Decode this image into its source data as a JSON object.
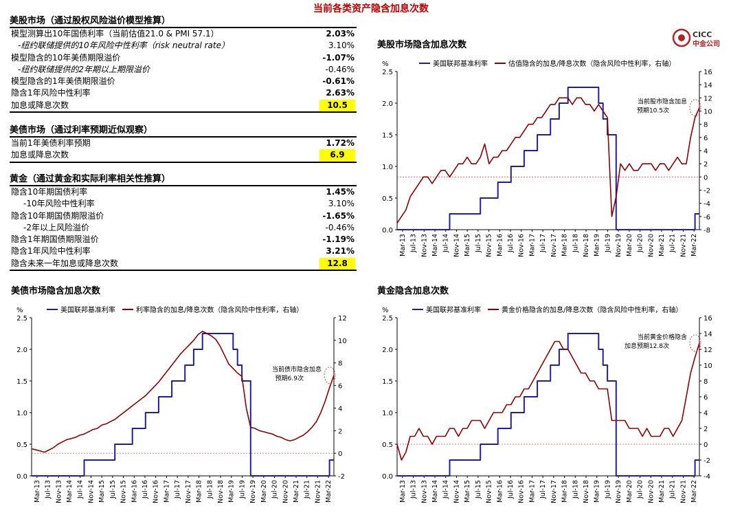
{
  "page_title": "当前各类资产隐含加息次数",
  "logo": {
    "line1": "CICC",
    "line2": "中金公司"
  },
  "tables": [
    {
      "title": "美股市场（通过股权风险溢价模型推算）",
      "rows": [
        {
          "label": "模型测算出10年国债利率（当前估值21.0 & PMI 57.1）",
          "value": "2.03%",
          "bold": true,
          "indent": 0
        },
        {
          "label": "-纽约联储提供的10年风险中性利率（risk neutral rate）",
          "value": "3.10%",
          "bold": false,
          "indent": 1
        },
        {
          "label": "模型隐含的10年美债期限溢价",
          "value": "-1.07%",
          "bold": true,
          "indent": 0
        },
        {
          "label": "-纽约联储提供的2年期以上期限溢价",
          "value": "-0.46%",
          "bold": false,
          "indent": 1
        },
        {
          "label": "模型隐含的1年美债期限溢价",
          "value": "-0.61%",
          "bold": true,
          "indent": 0
        },
        {
          "label": "隐含1年风险中性利率",
          "value": "2.63%",
          "bold": true,
          "indent": 0
        },
        {
          "label": "加息或降息次数",
          "value": "10.5",
          "bold": true,
          "indent": 0,
          "highlight": true
        }
      ]
    },
    {
      "title": "美债市场（通过利率预期近似观察）",
      "rows": [
        {
          "label": "当前1年美债利率预期",
          "value": "1.72%",
          "bold": true,
          "indent": 0
        },
        {
          "label": "加息或降息次数",
          "value": "6.9",
          "bold": true,
          "indent": 0,
          "highlight": true
        }
      ]
    },
    {
      "title": "黄金（通过黄金和实际利率相关性推算）",
      "rows": [
        {
          "label": "隐含10年期国债利率",
          "value": "1.45%",
          "bold": true,
          "indent": 0
        },
        {
          "label": "-10年风险中性利率",
          "value": "3.10%",
          "bold": false,
          "indent": 2
        },
        {
          "label": "隐含10年期国债期限溢价",
          "value": "-1.65%",
          "bold": true,
          "indent": 0
        },
        {
          "label": "-2年以上风险溢价",
          "value": "-0.46%",
          "bold": false,
          "indent": 2
        },
        {
          "label": "隐含1年期国债期限溢价",
          "value": "-1.19%",
          "bold": true,
          "indent": 0
        },
        {
          "label": "隐含1年风险中性利率",
          "value": "3.21%",
          "bold": true,
          "indent": 0
        },
        {
          "label": "隐含未来一年加息或降息次数",
          "value": "12.8",
          "bold": true,
          "indent": 0,
          "highlight": true
        }
      ]
    }
  ],
  "colors": {
    "fed": "#1f1f9e",
    "implied": "#8b0000",
    "highlight": "#ffff00",
    "title": "#c00000"
  },
  "x_ticks": [
    "Mar-13",
    "Jul-13",
    "Nov-13",
    "Mar-14",
    "Jul-14",
    "Nov-14",
    "Mar-15",
    "Jul-15",
    "Nov-15",
    "Mar-16",
    "Jul-16",
    "Nov-16",
    "Mar-17",
    "Jul-17",
    "Nov-17",
    "Mar-18",
    "Jul-18",
    "Nov-18",
    "Mar-19",
    "Jul-19",
    "Nov-19",
    "Mar-20",
    "Jul-20",
    "Nov-20",
    "Mar-21",
    "Jul-21",
    "Nov-21",
    "Mar-22"
  ],
  "chart_data": [
    {
      "type": "line",
      "title": "美股市场隐含加息次数",
      "y_unit": "%",
      "ylim_left": [
        0,
        2.5
      ],
      "ylim_right": [
        -8,
        16
      ],
      "left_ticks": [
        "0.0",
        "0.5",
        "1.0",
        "1.5",
        "2.0",
        "2.5"
      ],
      "right_ticks": [
        "-8",
        "-6",
        "-4",
        "-2",
        "0",
        "2",
        "4",
        "6",
        "8",
        "10",
        "12",
        "14",
        "16"
      ],
      "series": [
        {
          "name": "美国联邦基准利率",
          "axis": "left",
          "step": true,
          "values": [
            0,
            0,
            0,
            0,
            0,
            0,
            0,
            0,
            0,
            0,
            0,
            0,
            0.25,
            0.25,
            0.25,
            0.25,
            0.25,
            0.25,
            0.25,
            0.5,
            0.5,
            0.5,
            0.5,
            0.75,
            0.75,
            0.75,
            1.0,
            1.0,
            1.0,
            1.25,
            1.25,
            1.25,
            1.5,
            1.5,
            1.5,
            1.75,
            1.75,
            2.0,
            2.0,
            2.25,
            2.25,
            2.25,
            2.25,
            2.25,
            2.25,
            2.25,
            2.0,
            1.75,
            1.5,
            1.5,
            0,
            0,
            0,
            0,
            0,
            0,
            0,
            0,
            0,
            0,
            0,
            0,
            0,
            0,
            0,
            0,
            0,
            0,
            0.25,
            0.25
          ]
        },
        {
          "name": "估值隐含的加息/降息次数（隐含风险中性利率，右轴）",
          "axis": "right",
          "step": false,
          "values": [
            -7,
            -6,
            -5,
            -3,
            -2,
            -1,
            0,
            0,
            -1,
            0,
            1,
            1,
            0,
            1,
            2,
            2,
            3,
            2,
            2,
            3,
            5,
            2,
            3,
            3,
            4,
            4,
            5,
            6,
            6,
            7,
            8,
            8,
            9,
            9,
            10,
            11,
            11,
            12,
            12,
            12,
            11,
            12,
            12,
            11,
            11,
            10,
            11,
            10,
            9,
            -6,
            -3,
            2,
            1,
            2,
            1,
            1,
            2,
            2,
            2,
            1,
            2,
            2,
            1,
            2,
            3,
            2,
            2,
            6,
            9,
            10.5
          ]
        }
      ],
      "annotation": {
        "line1": "当前股市隐含加息",
        "line2": "预期10.5次"
      }
    },
    {
      "type": "line",
      "title": "美债市场隐含加息次数",
      "y_unit": "%",
      "ylim_left": [
        0,
        2.5
      ],
      "ylim_right": [
        -2,
        12
      ],
      "left_ticks": [
        "0.0",
        "0.5",
        "1.0",
        "1.5",
        "2.0",
        "2.5"
      ],
      "right_ticks": [
        "-2",
        "0",
        "2",
        "4",
        "6",
        "8",
        "10",
        "12"
      ],
      "series": [
        {
          "name": "美国联邦基准利率",
          "axis": "left",
          "step": true,
          "values": [
            0,
            0,
            0,
            0,
            0,
            0,
            0,
            0,
            0,
            0,
            0,
            0,
            0.25,
            0.25,
            0.25,
            0.25,
            0.25,
            0.25,
            0.25,
            0.5,
            0.5,
            0.5,
            0.5,
            0.75,
            0.75,
            0.75,
            1.0,
            1.0,
            1.0,
            1.25,
            1.25,
            1.25,
            1.5,
            1.5,
            1.5,
            1.75,
            1.75,
            2.0,
            2.0,
            2.25,
            2.25,
            2.25,
            2.25,
            2.25,
            2.25,
            2.25,
            2.0,
            1.75,
            1.5,
            1.5,
            0,
            0,
            0,
            0,
            0,
            0,
            0,
            0,
            0,
            0,
            0,
            0,
            0,
            0,
            0,
            0,
            0,
            0,
            0.25,
            0.25
          ]
        },
        {
          "name": "利率隐含的加息/降息次数（隐含风险中性利率，右轴）",
          "axis": "right",
          "step": false,
          "values": [
            0.4,
            0.3,
            0.2,
            0.1,
            0.3,
            0.5,
            0.8,
            1.0,
            1.2,
            1.3,
            1.4,
            1.6,
            1.7,
            1.9,
            2.1,
            2.2,
            2.5,
            2.6,
            2.8,
            3.0,
            3.3,
            3.6,
            3.9,
            4.2,
            4.5,
            4.8,
            5.1,
            5.5,
            5.9,
            6.3,
            6.8,
            7.3,
            7.8,
            8.3,
            8.8,
            9.2,
            9.6,
            10.0,
            10.5,
            10.8,
            10.6,
            10.4,
            10.1,
            9.5,
            8.7,
            7.9,
            7.5,
            7.1,
            6.8,
            4.0,
            2.3,
            2.2,
            2.0,
            1.9,
            1.8,
            1.7,
            1.5,
            1.4,
            1.2,
            1.1,
            1.2,
            1.4,
            1.6,
            1.9,
            2.3,
            2.8,
            3.6,
            4.6,
            5.8,
            6.9
          ]
        }
      ],
      "annotation": {
        "line1": "当前债市隐含加息",
        "line2": "预期6.9次"
      }
    },
    {
      "type": "line",
      "title": "黄金隐含加息次数",
      "y_unit": "%",
      "ylim_left": [
        0,
        2.5
      ],
      "ylim_right": [
        -4,
        16
      ],
      "left_ticks": [
        "0.0",
        "0.5",
        "1.0",
        "1.5",
        "2.0",
        "2.5"
      ],
      "right_ticks": [
        "-4",
        "-2",
        "0",
        "2",
        "4",
        "6",
        "8",
        "10",
        "12",
        "14",
        "16"
      ],
      "series": [
        {
          "name": "美国联邦基准利率",
          "axis": "left",
          "step": true,
          "values": [
            0,
            0,
            0,
            0,
            0,
            0,
            0,
            0,
            0,
            0,
            0,
            0,
            0.25,
            0.25,
            0.25,
            0.25,
            0.25,
            0.25,
            0.25,
            0.5,
            0.5,
            0.5,
            0.5,
            0.75,
            0.75,
            0.75,
            1.0,
            1.0,
            1.0,
            1.25,
            1.25,
            1.25,
            1.5,
            1.5,
            1.5,
            1.75,
            1.75,
            2.0,
            2.0,
            2.25,
            2.25,
            2.25,
            2.25,
            2.25,
            2.25,
            2.25,
            2.0,
            1.75,
            1.5,
            1.5,
            0,
            0,
            0,
            0,
            0,
            0,
            0,
            0,
            0,
            0,
            0,
            0,
            0,
            0,
            0,
            0,
            0,
            0,
            0.25,
            0.25
          ]
        },
        {
          "name": "黄金价格隐含的加息/降息次数（隐含风险中性利率，右轴）",
          "axis": "right",
          "step": false,
          "values": [
            0,
            -2,
            -1,
            1,
            1,
            2,
            1,
            1,
            0,
            1,
            1,
            1,
            2,
            2,
            1,
            2,
            2,
            3,
            3,
            3,
            2,
            3,
            4,
            4,
            4,
            5,
            5,
            6,
            6,
            7,
            7,
            8,
            9,
            10,
            11,
            12,
            13,
            13,
            12,
            12,
            11,
            10,
            9,
            9,
            8,
            8,
            7,
            7,
            7,
            3,
            3,
            3,
            3,
            2,
            2,
            2,
            1,
            2,
            1,
            1,
            1,
            2,
            2,
            1,
            2,
            3,
            6,
            9,
            11,
            12.8
          ]
        }
      ],
      "annotation": {
        "line1": "当前黄金价格隐含",
        "line2": "加息预期12.8次"
      }
    }
  ]
}
